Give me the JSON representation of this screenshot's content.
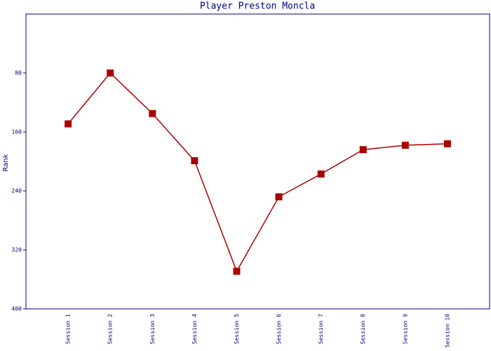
{
  "chart_data": {
    "type": "line",
    "title": "Player Preston Moncla",
    "y_label": "Rank",
    "categories": [
      "Session 1",
      "Session 2",
      "Session 3",
      "Session 4",
      "Session 5",
      "Session 6",
      "Session 7",
      "Session 8",
      "Session 9",
      "Session 10"
    ],
    "series": [
      {
        "name": "Rank",
        "color": "#aa0000",
        "values": [
          149,
          80,
          135,
          199,
          349,
          248,
          217,
          184,
          178,
          176
        ]
      }
    ],
    "ylim": [
      400,
      0
    ],
    "yticks": [
      80,
      160,
      240,
      320,
      400
    ],
    "grid": false
  }
}
